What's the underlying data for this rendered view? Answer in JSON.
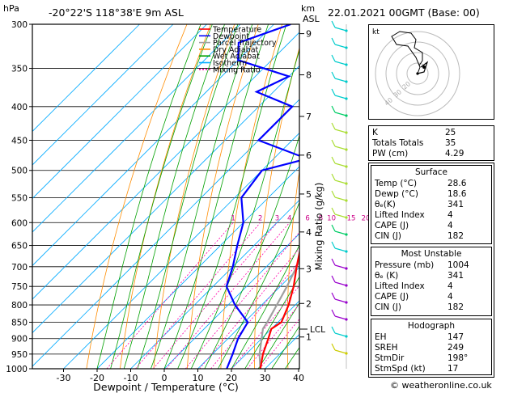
{
  "header": {
    "pres_unit": "hPa",
    "location": "-20°22'S  118°38'E  9m  ASL",
    "km_label": "km",
    "asl_label": "ASL",
    "datetime": "22.01.2021  00GMT  (Base: 00)"
  },
  "axes": {
    "xlabel": "Dewpoint / Temperature (°C)",
    "mixing_label": "Mixing Ratio (g/kg)",
    "lcl_label": "LCL"
  },
  "legend": [
    {
      "label": "Temperature",
      "color": "#ff0000"
    },
    {
      "label": "Dewpoint",
      "color": "#0000ff"
    },
    {
      "label": "Parcel Trajectory",
      "color": "#a0a0a0"
    },
    {
      "label": "Dry Adiabat",
      "color": "#ff8c00"
    },
    {
      "label": "Wet Adiabat",
      "color": "#00a000"
    },
    {
      "label": "Isotherm",
      "color": "#00aaff"
    },
    {
      "label": "Mixing Ratio",
      "color": "#ff00aa"
    }
  ],
  "indices": {
    "rows": [
      {
        "k": "K",
        "v": "25"
      },
      {
        "k": "Totals Totals",
        "v": "35"
      },
      {
        "k": "PW (cm)",
        "v": "4.29"
      }
    ]
  },
  "surface": {
    "title": "Surface",
    "rows": [
      {
        "k": "Temp (°C)",
        "v": "28.6"
      },
      {
        "k": "Dewp (°C)",
        "v": "18.6"
      },
      {
        "k": "θₑ(K)",
        "v": "341"
      },
      {
        "k": "Lifted Index",
        "v": "4"
      },
      {
        "k": "CAPE (J)",
        "v": "4"
      },
      {
        "k": "CIN (J)",
        "v": "182"
      }
    ]
  },
  "most_unstable": {
    "title": "Most Unstable",
    "rows": [
      {
        "k": "Pressure (mb)",
        "v": "1004"
      },
      {
        "k": "θₑ (K)",
        "v": "341"
      },
      {
        "k": "Lifted Index",
        "v": "4"
      },
      {
        "k": "CAPE (J)",
        "v": "4"
      },
      {
        "k": "CIN (J)",
        "v": "182"
      }
    ]
  },
  "hodograph": {
    "title": "Hodograph",
    "corner_label": "kt",
    "rows": [
      {
        "k": "EH",
        "v": "147"
      },
      {
        "k": "SREH",
        "v": "249"
      },
      {
        "k": "StmDir",
        "v": "198°"
      },
      {
        "k": "StmSpd (kt)",
        "v": "17"
      }
    ],
    "ring_labels": [
      "20",
      "30",
      "40"
    ]
  },
  "footer": "© weatheronline.co.uk",
  "chart_data": {
    "type": "line",
    "xlabel": "Dewpoint / Temperature (°C)",
    "ylabel": "hPa",
    "pressure_levels": [
      300,
      350,
      400,
      450,
      500,
      550,
      600,
      650,
      700,
      750,
      800,
      850,
      900,
      950,
      1000
    ],
    "x_ticks": [
      -30,
      -20,
      -10,
      0,
      10,
      20,
      30,
      40
    ],
    "xlim": [
      -40,
      40
    ],
    "km_ticks": [
      {
        "km": "9",
        "p": 310
      },
      {
        "km": "8",
        "p": 358
      },
      {
        "km": "7",
        "p": 414
      },
      {
        "km": "6",
        "p": 474
      },
      {
        "km": "5",
        "p": 543
      },
      {
        "km": "4",
        "p": 620
      },
      {
        "km": "3",
        "p": 705
      },
      {
        "km": "2",
        "p": 796
      },
      {
        "km": "1",
        "p": 895
      }
    ],
    "lcl_pressure": 870,
    "mixing_ratio_labels": [
      "1",
      "2",
      "3",
      "4",
      "6",
      "8",
      "10",
      "15",
      "20",
      "25"
    ],
    "mixing_ratio_values": [
      1,
      2,
      3,
      4,
      6,
      8,
      10,
      15,
      20,
      25
    ],
    "series": [
      {
        "name": "Temperature",
        "p": [
          1000,
          950,
          900,
          870,
          850,
          800,
          750,
          700,
          650,
          600,
          550,
          500,
          450,
          400,
          350,
          300
        ],
        "t": [
          28.6,
          25,
          22,
          20,
          21,
          18,
          14,
          9,
          4,
          -1,
          -6,
          -11,
          -18,
          -26,
          -36,
          -46
        ]
      },
      {
        "name": "Dewpoint",
        "p": [
          1000,
          950,
          900,
          850,
          800,
          750,
          700,
          650,
          600,
          550,
          500,
          480,
          450,
          400,
          380,
          360,
          340,
          320,
          300
        ],
        "t": [
          18.6,
          16,
          13,
          11,
          2,
          -6,
          -10,
          -15,
          -20,
          -28,
          -30,
          -20,
          -40,
          -40,
          -55,
          -50,
          -70,
          -75,
          -65
        ]
      },
      {
        "name": "Parcel Trajectory",
        "p": [
          1000,
          950,
          900,
          870,
          850,
          800,
          750,
          700,
          650,
          600,
          550,
          500,
          450,
          400,
          350,
          300
        ],
        "t": [
          28.6,
          24,
          20,
          17.5,
          16.8,
          14.5,
          12,
          9,
          6,
          3,
          -1,
          -5,
          -10,
          -16,
          -24,
          -33
        ]
      }
    ]
  }
}
